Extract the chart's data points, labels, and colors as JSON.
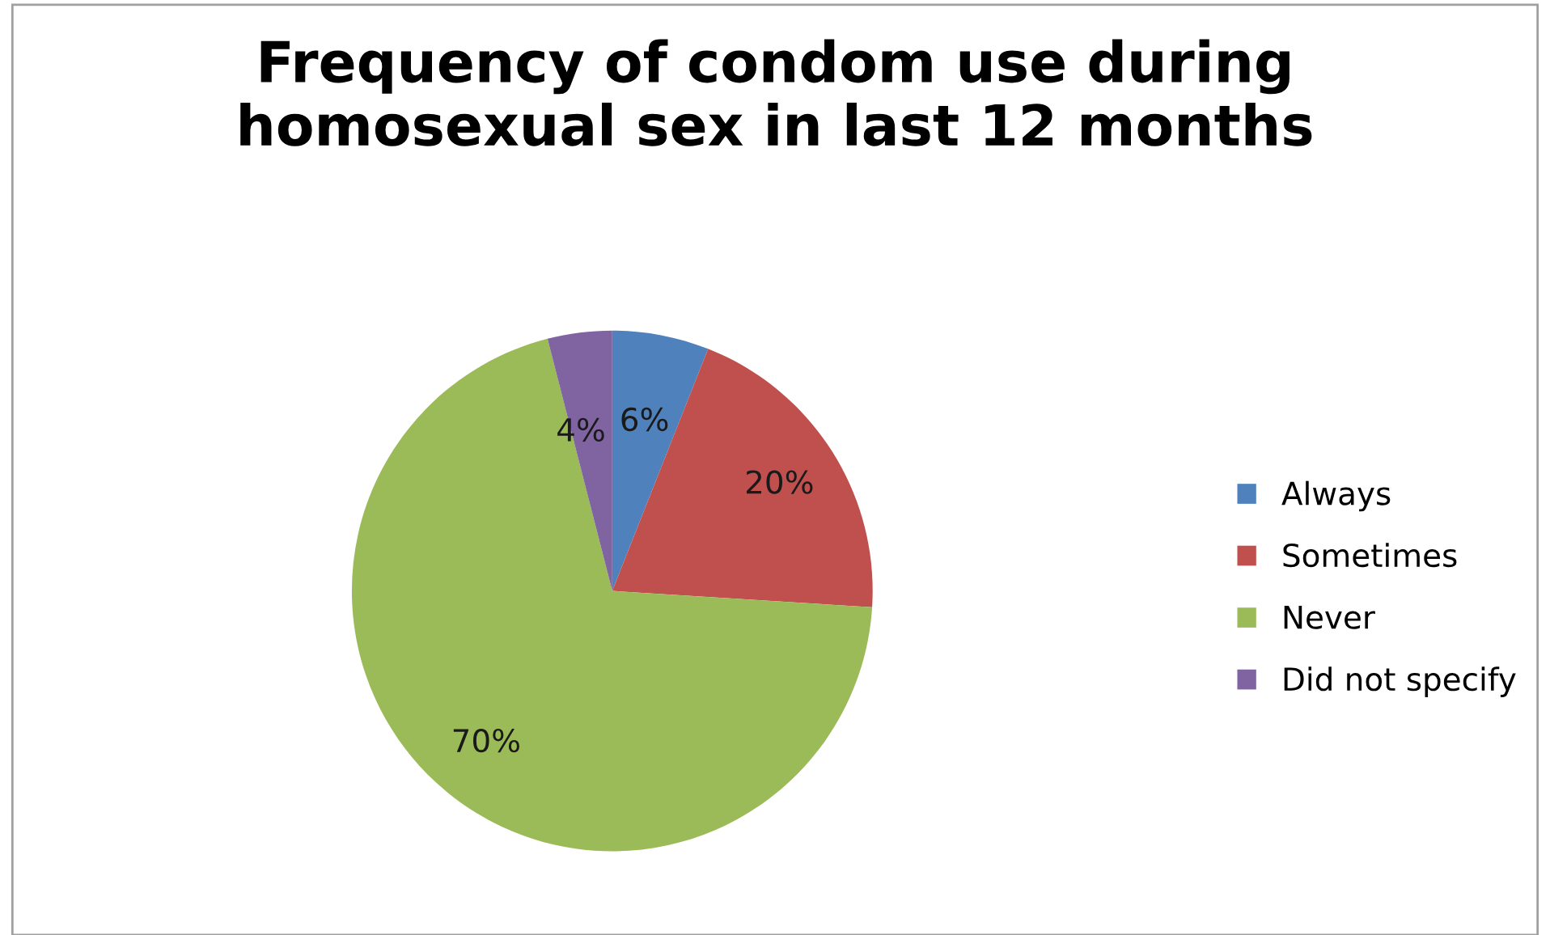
{
  "chart_data": {
    "type": "pie",
    "title": "Frequency of condom use during\nhomosexual sex in last 12 months",
    "categories": [
      "Always",
      "Sometimes",
      "Never",
      "Did not specify"
    ],
    "values": [
      6,
      20,
      70,
      4
    ],
    "colors": [
      "#4f81bd",
      "#c0504d",
      "#9bbb59",
      "#8064a2"
    ],
    "value_labels": [
      "6%",
      "20%",
      "70%",
      "4%"
    ],
    "legend": "right"
  }
}
